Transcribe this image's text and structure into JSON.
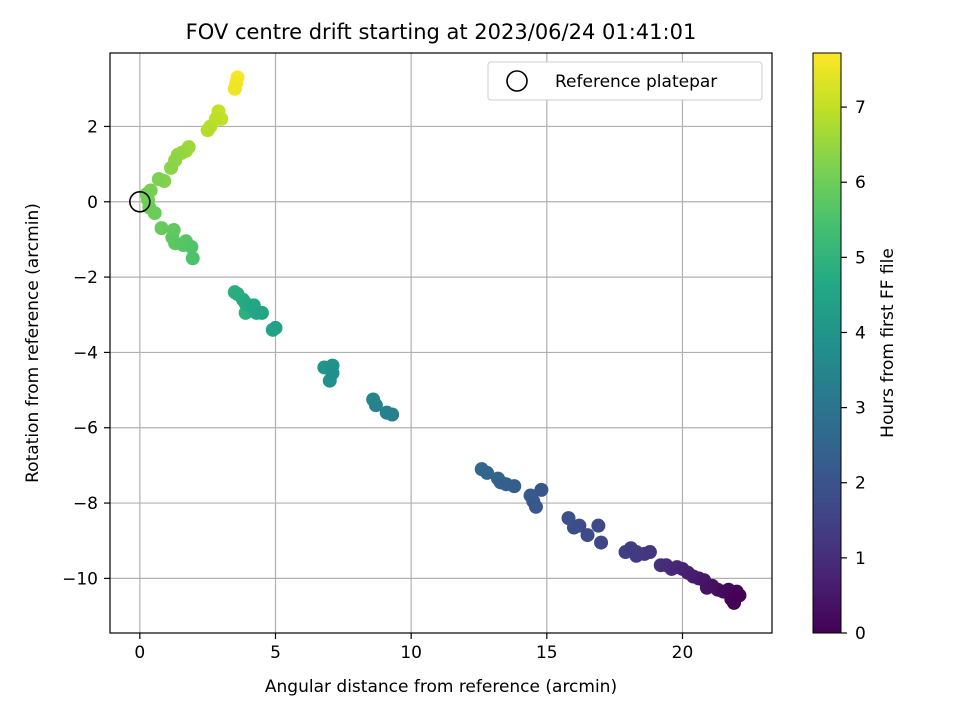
{
  "chart_data": {
    "type": "scatter",
    "title": "FOV centre drift starting at 2023/06/24 01:41:01",
    "xlabel": "Angular distance from reference (arcmin)",
    "ylabel": "Rotation from reference (arcmin)",
    "xlim": [
      -1.1,
      23.3
    ],
    "ylim": [
      -11.45,
      3.95
    ],
    "xticks": [
      0,
      5,
      10,
      15,
      20
    ],
    "yticks": [
      -10,
      -8,
      -6,
      -4,
      -2,
      0,
      2
    ],
    "ytick_labels": [
      "−10",
      "−8",
      "−6",
      "−4",
      "−2",
      "0",
      "2"
    ],
    "xtick_labels": [
      "0",
      "5",
      "10",
      "15",
      "20"
    ],
    "grid": true,
    "legend": {
      "position": "top-right",
      "entries": [
        {
          "label": "Reference platepar",
          "marker": "open-circle"
        }
      ]
    },
    "reference_point": {
      "x": 0,
      "y": 0
    },
    "colorbar": {
      "label": "Hours from first FF file",
      "range": [
        0,
        7.72
      ],
      "ticks": [
        0,
        1,
        2,
        3,
        4,
        5,
        6,
        7
      ],
      "colormap": "viridis"
    },
    "series": [
      {
        "marker": "filled-circle",
        "points": [
          [
            21.9,
            -10.65,
            0.02
          ],
          [
            22.1,
            -10.45,
            0.05
          ],
          [
            21.8,
            -10.55,
            0.08
          ],
          [
            22.0,
            -10.35,
            0.12
          ],
          [
            21.7,
            -10.3,
            0.18
          ],
          [
            21.5,
            -10.35,
            0.24
          ],
          [
            21.3,
            -10.3,
            0.3
          ],
          [
            21.1,
            -10.2,
            0.36
          ],
          [
            20.9,
            -10.25,
            0.42
          ],
          [
            20.8,
            -10.05,
            0.48
          ],
          [
            20.6,
            -10.0,
            0.55
          ],
          [
            20.4,
            -9.95,
            0.62
          ],
          [
            20.2,
            -9.85,
            0.7
          ],
          [
            20.0,
            -9.75,
            0.78
          ],
          [
            19.8,
            -9.7,
            0.86
          ],
          [
            19.6,
            -9.75,
            0.94
          ],
          [
            19.4,
            -9.65,
            1.0
          ],
          [
            19.2,
            -9.65,
            1.08
          ],
          [
            18.8,
            -9.3,
            1.2
          ],
          [
            18.6,
            -9.35,
            1.26
          ],
          [
            18.3,
            -9.4,
            1.32
          ],
          [
            18.1,
            -9.2,
            1.38
          ],
          [
            17.9,
            -9.3,
            1.44
          ],
          [
            18.3,
            -9.3,
            1.5
          ],
          [
            17.0,
            -9.05,
            1.62
          ],
          [
            16.9,
            -8.6,
            1.68
          ],
          [
            16.5,
            -8.85,
            1.74
          ],
          [
            16.2,
            -8.6,
            1.8
          ],
          [
            16.0,
            -8.65,
            1.86
          ],
          [
            15.8,
            -8.4,
            1.92
          ],
          [
            14.8,
            -7.65,
            2.05
          ],
          [
            14.6,
            -8.1,
            2.1
          ],
          [
            14.5,
            -7.95,
            2.15
          ],
          [
            14.4,
            -7.8,
            2.2
          ],
          [
            13.8,
            -7.55,
            2.3
          ],
          [
            13.5,
            -7.5,
            2.36
          ],
          [
            13.3,
            -7.45,
            2.42
          ],
          [
            13.2,
            -7.35,
            2.48
          ],
          [
            12.8,
            -7.2,
            2.54
          ],
          [
            12.6,
            -7.1,
            2.6
          ],
          [
            9.3,
            -5.65,
            3.3
          ],
          [
            9.1,
            -5.6,
            3.36
          ],
          [
            8.7,
            -5.4,
            3.42
          ],
          [
            8.6,
            -5.25,
            3.48
          ],
          [
            7.1,
            -4.55,
            3.8
          ],
          [
            7.0,
            -4.75,
            3.86
          ],
          [
            7.1,
            -4.35,
            3.92
          ],
          [
            6.8,
            -4.4,
            3.98
          ],
          [
            5.0,
            -3.35,
            4.4
          ],
          [
            4.9,
            -3.4,
            4.45
          ],
          [
            4.5,
            -2.95,
            4.5
          ],
          [
            4.3,
            -2.95,
            4.55
          ],
          [
            4.2,
            -2.75,
            4.6
          ],
          [
            4.0,
            -2.75,
            4.65
          ],
          [
            3.9,
            -2.7,
            4.7
          ],
          [
            3.8,
            -2.6,
            4.75
          ],
          [
            3.6,
            -2.45,
            4.8
          ],
          [
            3.5,
            -2.4,
            4.85
          ],
          [
            3.9,
            -2.95,
            4.9
          ],
          [
            1.95,
            -1.5,
            5.55
          ],
          [
            1.9,
            -1.2,
            5.6
          ],
          [
            1.7,
            -1.05,
            5.65
          ],
          [
            1.6,
            -1.15,
            5.7
          ],
          [
            1.3,
            -1.1,
            5.75
          ],
          [
            1.2,
            -0.95,
            5.8
          ],
          [
            1.25,
            -0.75,
            5.85
          ],
          [
            0.8,
            -0.7,
            5.9
          ],
          [
            0.55,
            -0.3,
            5.95
          ],
          [
            0.35,
            -0.15,
            6.0
          ],
          [
            0.3,
            0.05,
            6.05
          ],
          [
            0.25,
            0.2,
            6.1
          ],
          [
            0.4,
            0.3,
            6.15
          ],
          [
            0.7,
            0.6,
            6.2
          ],
          [
            0.9,
            0.55,
            6.25
          ],
          [
            1.15,
            0.9,
            6.35
          ],
          [
            1.3,
            1.1,
            6.4
          ],
          [
            1.4,
            1.25,
            6.45
          ],
          [
            1.55,
            1.3,
            6.5
          ],
          [
            1.7,
            1.35,
            6.55
          ],
          [
            1.8,
            1.45,
            6.6
          ],
          [
            2.5,
            1.9,
            6.85
          ],
          [
            2.6,
            2.0,
            6.9
          ],
          [
            2.8,
            2.2,
            6.95
          ],
          [
            3.0,
            2.2,
            7.0
          ],
          [
            2.9,
            2.4,
            7.05
          ],
          [
            3.5,
            3.0,
            7.55
          ],
          [
            3.55,
            3.15,
            7.6
          ],
          [
            3.6,
            3.3,
            7.65
          ]
        ]
      }
    ]
  }
}
